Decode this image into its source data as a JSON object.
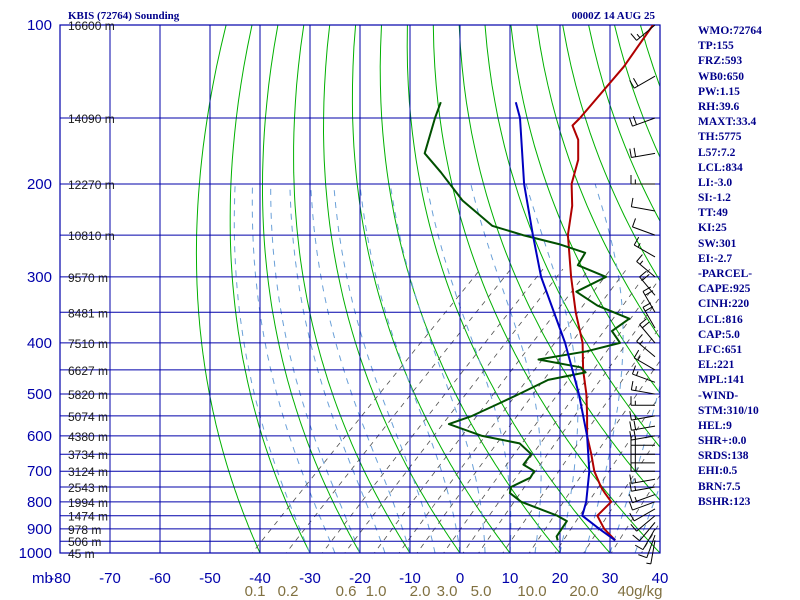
{
  "header": {
    "title": "KBIS (72764) Sounding",
    "timestamp": "0000Z 14 AUG 25"
  },
  "indices": [
    "WMO:72764",
    "TP:155",
    "FRZ:593",
    "WB0:650",
    "PW:1.15",
    "RH:39.6",
    "MAXT:33.4",
    "TH:5775",
    "L57:7.2",
    "LCL:834",
    "LI:-3.0",
    "SI:-1.2",
    "TT:49",
    "KI:25",
    "SW:301",
    "EI:-2.7",
    "-PARCEL-",
    "CAPE:925",
    "CINH:220",
    "LCL:816",
    "CAP:5.0",
    "LFC:651",
    "EL:221",
    "MPL:141",
    "-WIND-",
    "STM:310/10",
    "HEL:9",
    "SHR+:0.0",
    "SRDS:138",
    "EHI:0.5",
    "BRN:7.5",
    "BSHR:123"
  ],
  "colors": {
    "grid": "#0000aa",
    "temperature": "#b00000",
    "dewpoint": "#005000",
    "parcel": "#0000c0",
    "dry_adiabats": "#00b000",
    "moist_adiabats": "#6aa0d8",
    "mixing_ratio": "#505050",
    "axis_labels": "#0000aa",
    "mixing_labels": "#807040"
  },
  "chart_data": {
    "type": "line",
    "subtype": "skew-T log-p sounding",
    "y_axis": {
      "unit": "mb",
      "scale": "log",
      "ticks": [
        100,
        200,
        300,
        400,
        500,
        600,
        700,
        800,
        900,
        1000
      ]
    },
    "x_axis": {
      "unit": "C",
      "ticks": [
        -80,
        -70,
        -60,
        -50,
        -40,
        -30,
        -20,
        -10,
        0,
        10,
        20,
        30,
        40
      ]
    },
    "mixing_ratio_labels": [
      "0.1",
      "0.2",
      "0.6",
      "1.0",
      "2.0",
      "3.0",
      "5.0",
      "10.0",
      "20.0",
      "40g/kg"
    ],
    "height_labels": [
      {
        "p": 100,
        "label": "16600 m"
      },
      {
        "p": 150,
        "label": "14090 m"
      },
      {
        "p": 200,
        "label": "12270 m"
      },
      {
        "p": 250,
        "label": "10810 m"
      },
      {
        "p": 300,
        "label": "9570 m"
      },
      {
        "p": 350,
        "label": "8481 m"
      },
      {
        "p": 400,
        "label": "7510 m"
      },
      {
        "p": 450,
        "label": "6627 m"
      },
      {
        "p": 500,
        "label": "5820 m"
      },
      {
        "p": 550,
        "label": "5074 m"
      },
      {
        "p": 600,
        "label": "4380 m"
      },
      {
        "p": 650,
        "label": "3734 m"
      },
      {
        "p": 700,
        "label": "3124 m"
      },
      {
        "p": 750,
        "label": "2543 m"
      },
      {
        "p": 800,
        "label": "1994 m"
      },
      {
        "p": 850,
        "label": "1474 m"
      },
      {
        "p": 900,
        "label": "978 m"
      },
      {
        "p": 950,
        "label": "506 m"
      },
      {
        "p": 1000,
        "label": "45 m"
      }
    ],
    "series": [
      {
        "name": "Temperature",
        "points": [
          {
            "p": 946,
            "t": 28.5
          },
          {
            "p": 900,
            "t": 24
          },
          {
            "p": 850,
            "t": 20
          },
          {
            "p": 800,
            "t": 20
          },
          {
            "p": 770,
            "t": 17
          },
          {
            "p": 750,
            "t": 15
          },
          {
            "p": 700,
            "t": 10.5
          },
          {
            "p": 650,
            "t": 6.5
          },
          {
            "p": 600,
            "t": 2
          },
          {
            "p": 550,
            "t": -2
          },
          {
            "p": 500,
            "t": -6.5
          },
          {
            "p": 450,
            "t": -12
          },
          {
            "p": 400,
            "t": -17.5
          },
          {
            "p": 350,
            "t": -25
          },
          {
            "p": 300,
            "t": -33
          },
          {
            "p": 250,
            "t": -42
          },
          {
            "p": 220,
            "t": -47
          },
          {
            "p": 200,
            "t": -51.5
          },
          {
            "p": 180,
            "t": -55
          },
          {
            "p": 165,
            "t": -59
          },
          {
            "p": 155,
            "t": -63
          },
          {
            "p": 150,
            "t": -63
          },
          {
            "p": 120,
            "t": -64.5
          },
          {
            "p": 100,
            "t": -67
          }
        ]
      },
      {
        "name": "Dewpoint",
        "points": [
          {
            "p": 946,
            "t": 17
          },
          {
            "p": 930,
            "t": 16
          },
          {
            "p": 900,
            "t": 15.5
          },
          {
            "p": 870,
            "t": 15
          },
          {
            "p": 850,
            "t": 12
          },
          {
            "p": 800,
            "t": 2
          },
          {
            "p": 770,
            "t": -2
          },
          {
            "p": 750,
            "t": -3
          },
          {
            "p": 720,
            "t": -1
          },
          {
            "p": 700,
            "t": -1.5
          },
          {
            "p": 680,
            "t": -5
          },
          {
            "p": 650,
            "t": -5.5
          },
          {
            "p": 620,
            "t": -10
          },
          {
            "p": 600,
            "t": -19
          },
          {
            "p": 570,
            "t": -28
          },
          {
            "p": 550,
            "t": -25
          },
          {
            "p": 520,
            "t": -22
          },
          {
            "p": 500,
            "t": -20
          },
          {
            "p": 470,
            "t": -17
          },
          {
            "p": 455,
            "t": -11
          },
          {
            "p": 445,
            "t": -13
          },
          {
            "p": 430,
            "t": -23
          },
          {
            "p": 415,
            "t": -15
          },
          {
            "p": 400,
            "t": -10
          },
          {
            "p": 380,
            "t": -14
          },
          {
            "p": 360,
            "t": -13
          },
          {
            "p": 340,
            "t": -22
          },
          {
            "p": 320,
            "t": -29
          },
          {
            "p": 300,
            "t": -26
          },
          {
            "p": 285,
            "t": -34
          },
          {
            "p": 270,
            "t": -35
          },
          {
            "p": 260,
            "t": -42
          },
          {
            "p": 250,
            "t": -51
          },
          {
            "p": 240,
            "t": -59
          },
          {
            "p": 215,
            "t": -70
          },
          {
            "p": 190,
            "t": -80
          },
          {
            "p": 175,
            "t": -87
          },
          {
            "p": 150,
            "t": -92
          },
          {
            "p": 140,
            "t": -94
          }
        ]
      },
      {
        "name": "Parcel",
        "points": [
          {
            "p": 946,
            "t": 28.5
          },
          {
            "p": 900,
            "t": 23
          },
          {
            "p": 850,
            "t": 17
          },
          {
            "p": 800,
            "t": 15
          },
          {
            "p": 700,
            "t": 9.5
          },
          {
            "p": 600,
            "t": 2
          },
          {
            "p": 500,
            "t": -8
          },
          {
            "p": 400,
            "t": -21
          },
          {
            "p": 300,
            "t": -39
          },
          {
            "p": 250,
            "t": -49
          },
          {
            "p": 200,
            "t": -61
          },
          {
            "p": 150,
            "t": -75
          },
          {
            "p": 140,
            "t": -79
          }
        ]
      }
    ],
    "wind_barbs": [
      {
        "p": 946,
        "dir": 190,
        "spd": 5
      },
      {
        "p": 925,
        "dir": 200,
        "spd": 10
      },
      {
        "p": 900,
        "dir": 210,
        "spd": 10
      },
      {
        "p": 875,
        "dir": 220,
        "spd": 10
      },
      {
        "p": 850,
        "dir": 230,
        "spd": 10
      },
      {
        "p": 825,
        "dir": 240,
        "spd": 10
      },
      {
        "p": 800,
        "dir": 250,
        "spd": 10
      },
      {
        "p": 775,
        "dir": 250,
        "spd": 15
      },
      {
        "p": 750,
        "dir": 260,
        "spd": 15
      },
      {
        "p": 725,
        "dir": 260,
        "spd": 15
      },
      {
        "p": 700,
        "dir": 270,
        "spd": 20
      },
      {
        "p": 675,
        "dir": 270,
        "spd": 20
      },
      {
        "p": 650,
        "dir": 270,
        "spd": 20
      },
      {
        "p": 625,
        "dir": 270,
        "spd": 20
      },
      {
        "p": 600,
        "dir": 260,
        "spd": 20
      },
      {
        "p": 575,
        "dir": 260,
        "spd": 20
      },
      {
        "p": 550,
        "dir": 260,
        "spd": 15
      },
      {
        "p": 525,
        "dir": 270,
        "spd": 15
      },
      {
        "p": 500,
        "dir": 280,
        "spd": 15
      },
      {
        "p": 475,
        "dir": 290,
        "spd": 15
      },
      {
        "p": 450,
        "dir": 300,
        "spd": 15
      },
      {
        "p": 425,
        "dir": 310,
        "spd": 15
      },
      {
        "p": 400,
        "dir": 320,
        "spd": 20
      },
      {
        "p": 375,
        "dir": 330,
        "spd": 20
      },
      {
        "p": 350,
        "dir": 330,
        "spd": 20
      },
      {
        "p": 325,
        "dir": 320,
        "spd": 20
      },
      {
        "p": 300,
        "dir": 310,
        "spd": 15
      },
      {
        "p": 275,
        "dir": 300,
        "spd": 15
      },
      {
        "p": 250,
        "dir": 290,
        "spd": 10
      },
      {
        "p": 225,
        "dir": 280,
        "spd": 10
      },
      {
        "p": 200,
        "dir": 270,
        "spd": 15
      },
      {
        "p": 175,
        "dir": 260,
        "spd": 20
      },
      {
        "p": 150,
        "dir": 250,
        "spd": 20
      },
      {
        "p": 125,
        "dir": 240,
        "spd": 20
      },
      {
        "p": 100,
        "dir": 230,
        "spd": 15
      }
    ]
  }
}
